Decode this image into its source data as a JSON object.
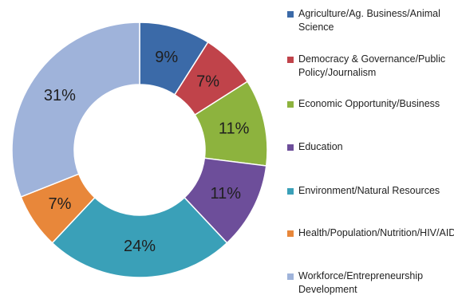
{
  "chart_data": {
    "type": "pie",
    "variant": "donut",
    "legend_position": "right",
    "slices": [
      {
        "label": "Agriculture/Ag. Business/Animal Science",
        "value": 9,
        "display": "9%",
        "color": "#3b6aa8"
      },
      {
        "label": "Democracy & Governance/Public Policy/Journalism",
        "value": 7,
        "display": "7%",
        "color": "#c0434a"
      },
      {
        "label": "Economic Opportunity/Business",
        "value": 11,
        "display": "11%",
        "color": "#8db33e"
      },
      {
        "label": "Education",
        "value": 11,
        "display": "11%",
        "color": "#6d4e9a"
      },
      {
        "label": "Environment/Natural Resources",
        "value": 24,
        "display": "24%",
        "color": "#3aa0b8"
      },
      {
        "label": "Health/Population/Nutrition/HIV/AIDS",
        "value": 7,
        "display": "7%",
        "color": "#e8873a"
      },
      {
        "label": "Workforce/Entrepreneurship Development",
        "value": 31,
        "display": "31%",
        "color": "#9fb3da"
      }
    ]
  }
}
